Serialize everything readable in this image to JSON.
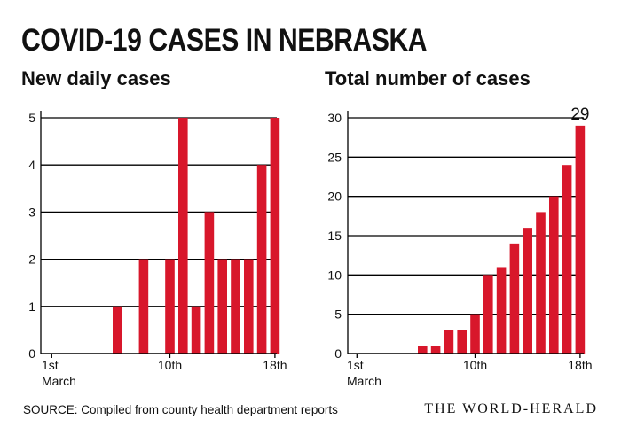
{
  "title": "COVID-19 CASES IN NEBRASKA",
  "source": "SOURCE: Compiled from county health department reports",
  "publisher": "THE WORLD-HERALD",
  "colors": {
    "bar": "#d8172b",
    "grid": "#000000",
    "text": "#111111"
  },
  "chart_data": [
    {
      "type": "bar",
      "title": "New daily cases",
      "x_ticks": [
        {
          "day": 1,
          "label": "1st",
          "sublabel": "March"
        },
        {
          "day": 10,
          "label": "10th",
          "sublabel": ""
        },
        {
          "day": 18,
          "label": "18th",
          "sublabel": ""
        }
      ],
      "days": [
        1,
        2,
        3,
        4,
        5,
        6,
        7,
        8,
        9,
        10,
        11,
        12,
        13,
        14,
        15,
        16,
        17,
        18
      ],
      "values": [
        0,
        0,
        0,
        0,
        0,
        1,
        0,
        2,
        0,
        2,
        5,
        1,
        3,
        2,
        2,
        2,
        4,
        5
      ],
      "ylim": [
        0,
        5
      ],
      "yticks": [
        0,
        1,
        2,
        3,
        4,
        5
      ],
      "xlabel": "",
      "ylabel": "",
      "grid": true
    },
    {
      "type": "bar",
      "title": "Total number of cases",
      "x_ticks": [
        {
          "day": 1,
          "label": "1st",
          "sublabel": "March"
        },
        {
          "day": 10,
          "label": "10th",
          "sublabel": ""
        },
        {
          "day": 18,
          "label": "18th",
          "sublabel": ""
        }
      ],
      "days": [
        1,
        2,
        3,
        4,
        5,
        6,
        7,
        8,
        9,
        10,
        11,
        12,
        13,
        14,
        15,
        16,
        17,
        18
      ],
      "values": [
        0,
        0,
        0,
        0,
        0,
        1,
        1,
        3,
        3,
        5,
        10,
        11,
        14,
        16,
        18,
        20,
        24,
        29
      ],
      "ylim": [
        0,
        30
      ],
      "yticks": [
        0,
        5,
        10,
        15,
        20,
        25,
        30
      ],
      "annotation": {
        "day": 18,
        "text": "29"
      },
      "xlabel": "",
      "ylabel": "",
      "grid": true
    }
  ]
}
